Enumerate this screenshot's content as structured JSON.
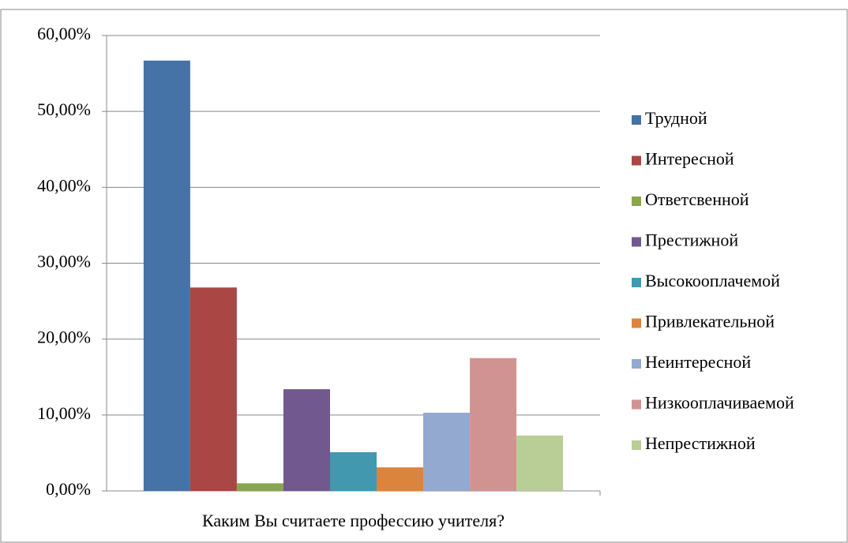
{
  "chart_data": {
    "type": "bar",
    "categories": [
      "Каким Вы считаете профессию учителя?"
    ],
    "series": [
      {
        "name": "Трудной",
        "color": "#4572a7",
        "values": [
          56.7
        ]
      },
      {
        "name": "Интересной",
        "color": "#aa4643",
        "values": [
          26.8
        ]
      },
      {
        "name": "Ответсвенной",
        "color": "#89a54e",
        "values": [
          1.0
        ]
      },
      {
        "name": "Престижной",
        "color": "#71588f",
        "values": [
          13.4
        ]
      },
      {
        "name": "Высокооплачемой",
        "color": "#4198af",
        "values": [
          5.1
        ]
      },
      {
        "name": "Привлекательной",
        "color": "#db843d",
        "values": [
          3.1
        ]
      },
      {
        "name": "Неинтересной",
        "color": "#93a9cf",
        "values": [
          10.3
        ]
      },
      {
        "name": "Низкооплачиваемой",
        "color": "#d19392",
        "values": [
          17.5
        ]
      },
      {
        "name": "Непрестижной",
        "color": "#b9cd96",
        "values": [
          7.3
        ]
      }
    ],
    "ylim": [
      0,
      60
    ],
    "yticks": [
      {
        "value": 0,
        "label": "0,00%"
      },
      {
        "value": 10,
        "label": "10,00%"
      },
      {
        "value": 20,
        "label": "20,00%"
      },
      {
        "value": 30,
        "label": "30,00%"
      },
      {
        "value": 40,
        "label": "40,00%"
      },
      {
        "value": 50,
        "label": "50,00%"
      },
      {
        "value": 60,
        "label": "60,00%"
      }
    ],
    "grid": true,
    "legend": "right"
  }
}
